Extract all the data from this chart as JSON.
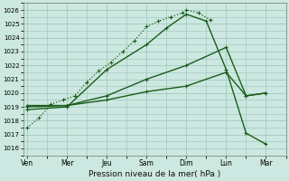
{
  "xlabel": "Pression niveau de la mer( hPa )",
  "x_labels": [
    "Ven",
    "Mer",
    "Jeu",
    "Sam",
    "Dim",
    "Lun",
    "Mar"
  ],
  "x_tick_pos": [
    0,
    1,
    2,
    3,
    4,
    5,
    6
  ],
  "xlim": [
    -0.1,
    6.5
  ],
  "ylim": [
    1015.5,
    1026.5
  ],
  "yticks": [
    1016,
    1017,
    1018,
    1019,
    1020,
    1021,
    1022,
    1023,
    1024,
    1025,
    1026
  ],
  "bg_color": "#cce8e0",
  "line_color": "#1a5c1a",
  "grid_color": "#99c4b8",
  "lines": [
    {
      "x": [
        0,
        0.3,
        0.6,
        0.9,
        1.2,
        1.5,
        1.8,
        2.1,
        2.4,
        2.7,
        3.0,
        3.3,
        3.6,
        3.9,
        4.0,
        4.3,
        4.6
      ],
      "y": [
        1017.5,
        1018.2,
        1019.2,
        1019.5,
        1019.8,
        1020.8,
        1021.6,
        1022.2,
        1023.0,
        1023.8,
        1024.8,
        1025.2,
        1025.5,
        1025.8,
        1026.0,
        1025.8,
        1025.3
      ],
      "linestyle": "dotted",
      "linewidth": 0.9,
      "marker": "+",
      "markersize": 3.5,
      "markeredgewidth": 0.8
    },
    {
      "x": [
        0,
        1,
        2,
        3,
        3.5,
        4.0,
        4.5,
        5.0,
        5.5,
        6.0
      ],
      "y": [
        1018.8,
        1019.0,
        1021.7,
        1023.5,
        1024.7,
        1025.7,
        1025.2,
        1021.7,
        1017.1,
        1016.3
      ],
      "linestyle": "solid",
      "linewidth": 1.0,
      "marker": "+",
      "markersize": 3.5,
      "markeredgewidth": 0.8
    },
    {
      "x": [
        0,
        1,
        2,
        3,
        4,
        5,
        5.5,
        6.0
      ],
      "y": [
        1019.0,
        1019.1,
        1019.8,
        1021.0,
        1022.0,
        1023.3,
        1019.8,
        1020.0
      ],
      "linestyle": "solid",
      "linewidth": 1.0,
      "marker": "+",
      "markersize": 3.5,
      "markeredgewidth": 0.8
    },
    {
      "x": [
        0,
        1,
        2,
        3,
        4,
        5,
        5.5,
        6.0
      ],
      "y": [
        1019.1,
        1019.1,
        1019.5,
        1020.1,
        1020.5,
        1021.5,
        1019.8,
        1020.0
      ],
      "linestyle": "solid",
      "linewidth": 1.0,
      "marker": "+",
      "markersize": 3.5,
      "markeredgewidth": 0.8
    }
  ]
}
